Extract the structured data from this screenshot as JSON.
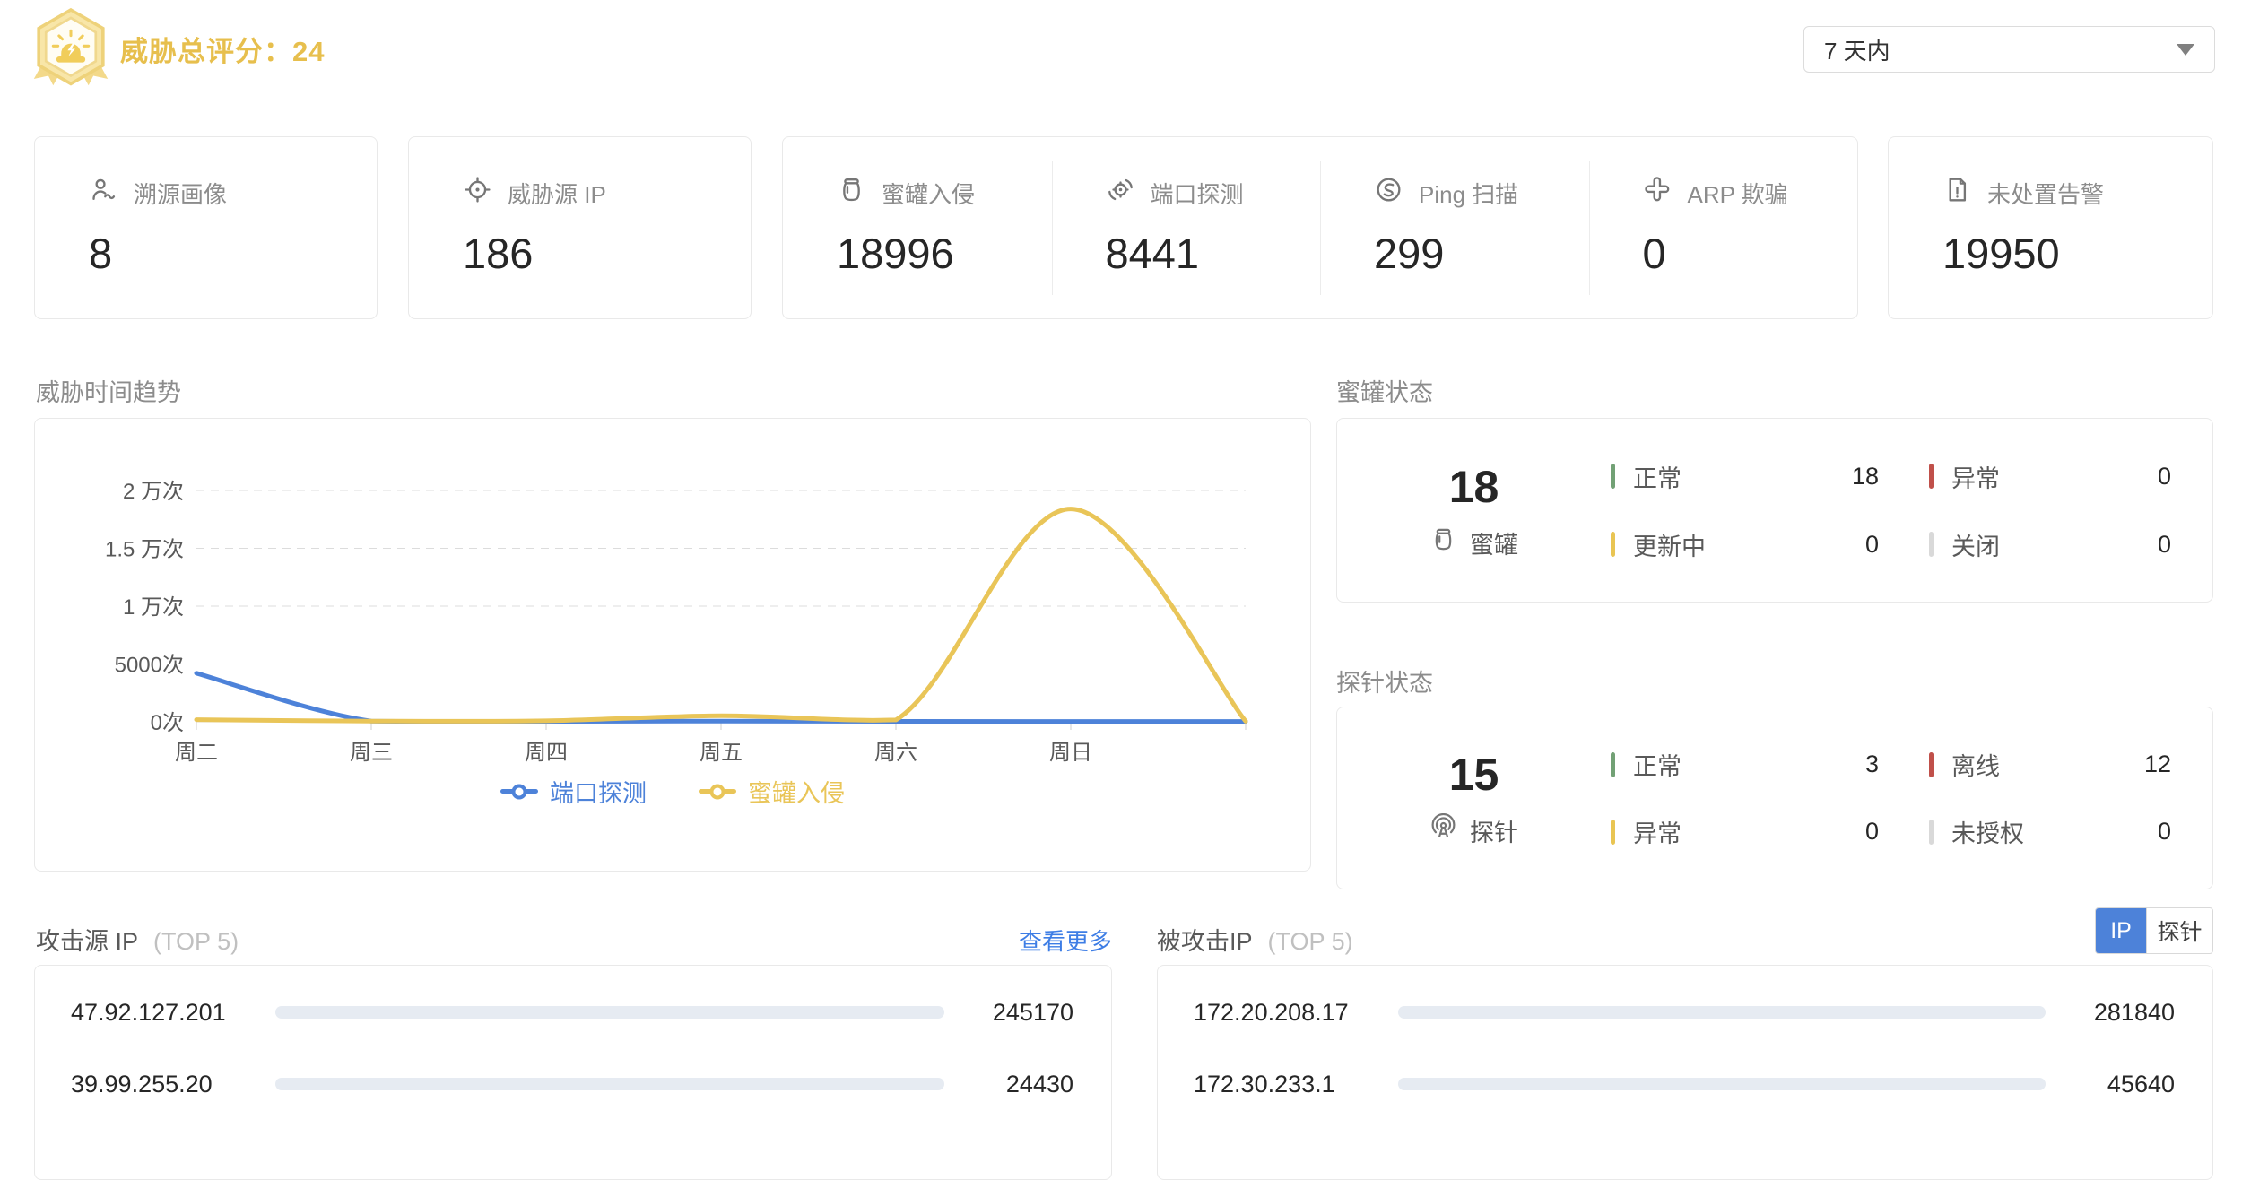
{
  "colors": {
    "accent": "#4d82d9",
    "gold": "#e7bf4d",
    "link": "#3d7de5",
    "green": "#72a175",
    "red": "#c0504a",
    "yellow": "#e9c553",
    "gray": "#d9d9d9",
    "track": "#e6ebf2"
  },
  "header": {
    "score_label": "威胁总评分：",
    "score_value": "24",
    "time_range": {
      "value": "7 天内"
    }
  },
  "stats": [
    {
      "label": "溯源画像",
      "value": "8"
    },
    {
      "label": "威胁源 IP",
      "value": "186"
    },
    {
      "label": "蜜罐入侵",
      "value": "18996"
    },
    {
      "label": "端口探测",
      "value": "8441"
    },
    {
      "label": "Ping 扫描",
      "value": "299"
    },
    {
      "label": "ARP 欺骗",
      "value": "0"
    },
    {
      "label": "未处置告警",
      "value": "19950"
    }
  ],
  "chart_data": [
    {
      "type": "line",
      "title": "威胁时间趋势",
      "x": [
        "周二",
        "周三",
        "周四",
        "周五",
        "周六",
        "周日",
        ""
      ],
      "ylim": [
        0,
        20000
      ],
      "yticks": [
        {
          "v": 0,
          "label": "0次"
        },
        {
          "v": 5000,
          "label": "5000次"
        },
        {
          "v": 10000,
          "label": "1 万次"
        },
        {
          "v": 15000,
          "label": "1.5 万次"
        },
        {
          "v": 20000,
          "label": "2 万次"
        }
      ],
      "series": [
        {
          "name": "端口探测",
          "color": "#4d82d9",
          "values": [
            4200,
            60,
            40,
            60,
            40,
            30,
            30
          ]
        },
        {
          "name": "蜜罐入侵",
          "color": "#e9c558",
          "values": [
            180,
            60,
            90,
            520,
            160,
            18400,
            50
          ]
        }
      ],
      "legend_position": "bottom",
      "grid": "horizontal-dashed"
    },
    {
      "type": "bar",
      "orientation": "horizontal",
      "title": "攻击源 IP",
      "title_suffix": "(TOP 5)",
      "more_label": "查看更多",
      "categories": [
        "47.92.127.201",
        "39.99.255.20"
      ],
      "values": [
        245170,
        24430
      ]
    },
    {
      "type": "bar",
      "orientation": "horizontal",
      "title": "被攻击IP",
      "title_suffix": "(TOP 5)",
      "tabs": [
        "IP",
        "探针"
      ],
      "active_tab": "IP",
      "categories": [
        "172.20.208.17",
        "172.30.233.1"
      ],
      "values": [
        281840,
        45640
      ]
    }
  ],
  "honeypot_status": {
    "title": "蜜罐状态",
    "total": "18",
    "unit": "蜜罐",
    "items": [
      {
        "label": "正常",
        "value": "18",
        "color": "#72a175"
      },
      {
        "label": "异常",
        "value": "0",
        "color": "#c0504a"
      },
      {
        "label": "更新中",
        "value": "0",
        "color": "#e9c553"
      },
      {
        "label": "关闭",
        "value": "0",
        "color": "#d9d9d9"
      }
    ]
  },
  "probe_status": {
    "title": "探针状态",
    "total": "15",
    "unit": "探针",
    "items": [
      {
        "label": "正常",
        "value": "3",
        "color": "#72a175"
      },
      {
        "label": "离线",
        "value": "12",
        "color": "#c0504a"
      },
      {
        "label": "异常",
        "value": "0",
        "color": "#e9c553"
      },
      {
        "label": "未授权",
        "value": "0",
        "color": "#d9d9d9"
      }
    ]
  }
}
